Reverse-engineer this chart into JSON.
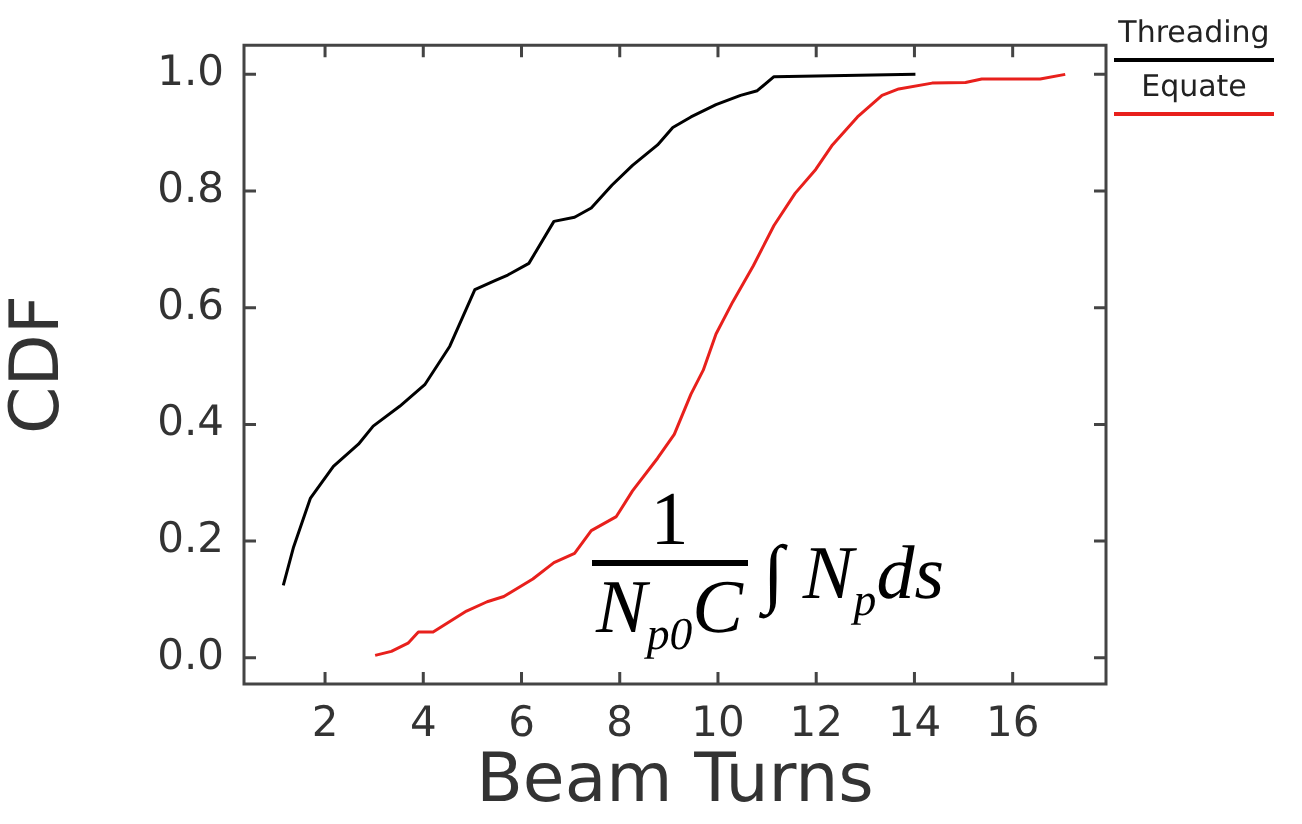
{
  "chart_data": {
    "type": "line",
    "xlabel": "Beam Turns",
    "ylabel": "CDF",
    "xlim": [
      0.35,
      17.9
    ],
    "ylim": [
      -0.045,
      1.05
    ],
    "xticks": [
      2,
      4,
      6,
      8,
      10,
      12,
      14,
      16
    ],
    "yticks": [
      {
        "value": 0,
        "label": "0.0"
      },
      {
        "value": 0.2,
        "label": "0.2"
      },
      {
        "value": 0.4,
        "label": "0.4"
      },
      {
        "value": 0.6,
        "label": "0.6"
      },
      {
        "value": 0.8,
        "label": "0.8"
      },
      {
        "value": 1,
        "label": "1.0"
      }
    ],
    "legend": "top right",
    "grid": false,
    "marker": "none",
    "line_style": "solid",
    "annotations": [
      "1",
      "N$_{p0}$C",
      "∫ N$_{p}$ds"
    ],
    "series": [
      {
        "name": "Threading",
        "color": "#000000",
        "x": [
          1.15,
          1.36,
          1.7,
          2.17,
          2.68,
          2.98,
          3.52,
          4.03,
          4.54,
          5.05,
          5.47,
          5.72,
          6.15,
          6.66,
          7.08,
          7.42,
          7.84,
          8.26,
          8.77,
          9.08,
          9.45,
          9.96,
          10.46,
          10.8,
          11.14,
          14.02
        ],
        "values": [
          0.124,
          0.19,
          0.273,
          0.328,
          0.366,
          0.397,
          0.431,
          0.468,
          0.534,
          0.631,
          0.647,
          0.656,
          0.676,
          0.748,
          0.755,
          0.771,
          0.81,
          0.844,
          0.879,
          0.909,
          0.927,
          0.948,
          0.964,
          0.972,
          0.996,
          1.0
        ]
      },
      {
        "name": "Equate",
        "color": "#e8201c",
        "x": [
          3.02,
          3.35,
          3.69,
          3.9,
          4.2,
          4.88,
          5.3,
          5.64,
          6.23,
          6.66,
          7.08,
          7.42,
          7.93,
          8.26,
          8.77,
          9.11,
          9.45,
          9.7,
          9.96,
          10.3,
          10.72,
          11.14,
          11.57,
          11.99,
          12.33,
          12.84,
          13.34,
          13.68,
          14.36,
          15.04,
          15.37,
          16.56,
          17.07
        ],
        "values": [
          0.004,
          0.011,
          0.025,
          0.044,
          0.044,
          0.08,
          0.096,
          0.105,
          0.135,
          0.163,
          0.179,
          0.218,
          0.242,
          0.286,
          0.342,
          0.383,
          0.452,
          0.493,
          0.555,
          0.61,
          0.672,
          0.741,
          0.796,
          0.837,
          0.879,
          0.927,
          0.964,
          0.975,
          0.985,
          0.986,
          0.992,
          0.992,
          1.0
        ]
      }
    ]
  }
}
